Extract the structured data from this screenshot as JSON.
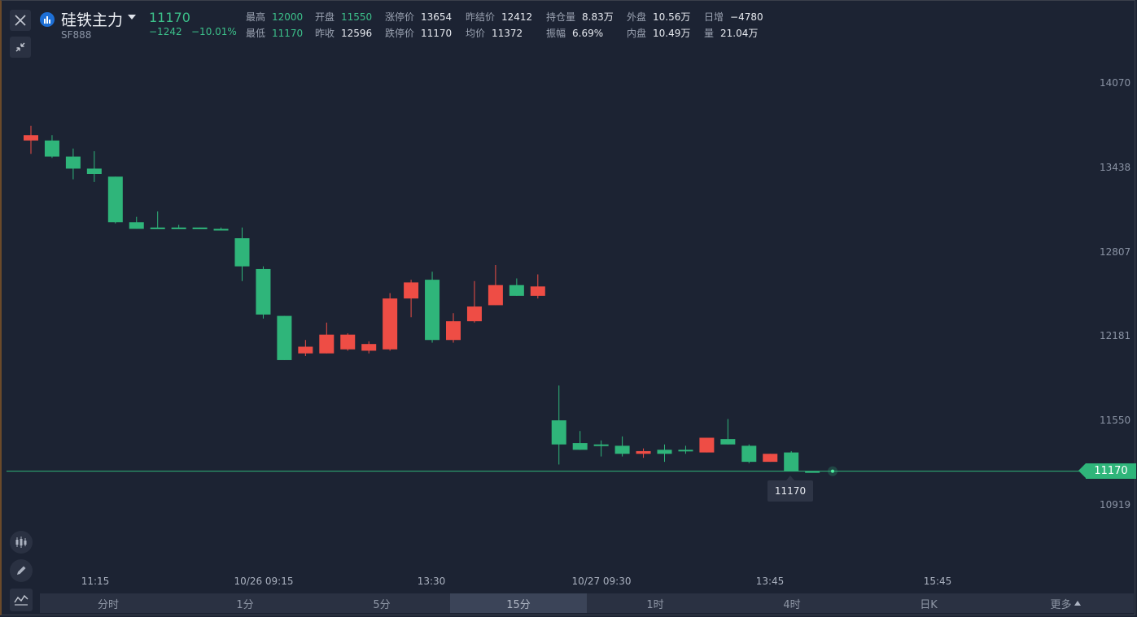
{
  "header": {
    "title": "硅铁主力",
    "code": "SF888",
    "last_price": "11170",
    "change": "−1242",
    "change_pct": "−10.01%",
    "stats_row1": [
      {
        "label": "最高",
        "value": "12000",
        "green": true
      },
      {
        "label": "开盘",
        "value": "11550",
        "green": true
      },
      {
        "label": "涨停价",
        "value": "13654",
        "green": false
      },
      {
        "label": "昨结价",
        "value": "12412",
        "green": false
      },
      {
        "label": "持仓量",
        "value": "8.83万",
        "green": false
      },
      {
        "label": "外盘",
        "value": "10.56万",
        "green": false
      },
      {
        "label": "日增",
        "value": "−4780",
        "green": false
      }
    ],
    "stats_row2": [
      {
        "label": "最低",
        "value": "11170",
        "green": true
      },
      {
        "label": "昨收",
        "value": "12596",
        "green": false
      },
      {
        "label": "跌停价",
        "value": "11170",
        "green": false
      },
      {
        "label": "均价",
        "value": "11372",
        "green": false
      },
      {
        "label": "振幅",
        "value": "6.69%",
        "green": false
      },
      {
        "label": "内盘",
        "value": "10.49万",
        "green": false
      },
      {
        "label": "量",
        "value": "21.04万",
        "green": false
      }
    ]
  },
  "chart_data": {
    "type": "candlestick",
    "y_ticks": [
      "14070",
      "13438",
      "12807",
      "12181",
      "11550",
      "10919"
    ],
    "x_ticks": [
      "11:15",
      "10/26 09:15",
      "13:30",
      "10/27 09:30",
      "13:45",
      "15:45"
    ],
    "last_price_tag": "11170",
    "crosshair_label": "11170",
    "colors": {
      "up": "#ee4d45",
      "down": "#2fb57a",
      "background": "#1c2333"
    },
    "candles": [
      {
        "open": 13640,
        "high": 13750,
        "low": 13540,
        "close": 13680
      },
      {
        "open": 13640,
        "high": 13680,
        "low": 13510,
        "close": 13520
      },
      {
        "open": 13520,
        "high": 13580,
        "low": 13350,
        "close": 13430
      },
      {
        "open": 13430,
        "high": 13560,
        "low": 13330,
        "close": 13390
      },
      {
        "open": 13370,
        "high": 13370,
        "low": 13020,
        "close": 13030
      },
      {
        "open": 13030,
        "high": 13070,
        "low": 12980,
        "close": 12980
      },
      {
        "open": 12990,
        "high": 13110,
        "low": 12980,
        "close": 12990
      },
      {
        "open": 12990,
        "high": 13010,
        "low": 12980,
        "close": 12990
      },
      {
        "open": 12990,
        "high": 12990,
        "low": 12980,
        "close": 12980
      },
      {
        "open": 12980,
        "high": 12990,
        "low": 12980,
        "close": 12980
      },
      {
        "open": 12910,
        "high": 12990,
        "low": 12590,
        "close": 12700
      },
      {
        "open": 12680,
        "high": 12700,
        "low": 12310,
        "close": 12340
      },
      {
        "open": 12330,
        "high": 12330,
        "low": 12000,
        "close": 12000
      },
      {
        "open": 12050,
        "high": 12150,
        "low": 12030,
        "close": 12100
      },
      {
        "open": 12050,
        "high": 12280,
        "low": 12050,
        "close": 12190
      },
      {
        "open": 12080,
        "high": 12200,
        "low": 12070,
        "close": 12190
      },
      {
        "open": 12070,
        "high": 12140,
        "low": 12050,
        "close": 12120
      },
      {
        "open": 12080,
        "high": 12500,
        "low": 12070,
        "close": 12460
      },
      {
        "open": 12460,
        "high": 12600,
        "low": 12320,
        "close": 12580
      },
      {
        "open": 12600,
        "high": 12660,
        "low": 12130,
        "close": 12150
      },
      {
        "open": 12150,
        "high": 12350,
        "low": 12130,
        "close": 12290
      },
      {
        "open": 12290,
        "high": 12590,
        "low": 12280,
        "close": 12400
      },
      {
        "open": 12410,
        "high": 12710,
        "low": 12410,
        "close": 12560
      },
      {
        "open": 12560,
        "high": 12610,
        "low": 12480,
        "close": 12480
      },
      {
        "open": 12480,
        "high": 12640,
        "low": 12460,
        "close": 12550
      },
      {
        "open": 11550,
        "high": 11810,
        "low": 11220,
        "close": 11370
      },
      {
        "open": 11380,
        "high": 11470,
        "low": 11330,
        "close": 11330
      },
      {
        "open": 11370,
        "high": 11400,
        "low": 11280,
        "close": 11360
      },
      {
        "open": 11360,
        "high": 11430,
        "low": 11280,
        "close": 11300
      },
      {
        "open": 11300,
        "high": 11340,
        "low": 11270,
        "close": 11320
      },
      {
        "open": 11330,
        "high": 11370,
        "low": 11240,
        "close": 11300
      },
      {
        "open": 11330,
        "high": 11360,
        "low": 11300,
        "close": 11330
      },
      {
        "open": 11310,
        "high": 11420,
        "low": 11310,
        "close": 11420
      },
      {
        "open": 11410,
        "high": 11560,
        "low": 11370,
        "close": 11370
      },
      {
        "open": 11360,
        "high": 11370,
        "low": 11230,
        "close": 11240
      },
      {
        "open": 11240,
        "high": 11300,
        "low": 11240,
        "close": 11300
      },
      {
        "open": 11310,
        "high": 11320,
        "low": 11170,
        "close": 11170
      },
      {
        "open": 11170,
        "high": 11170,
        "low": 11170,
        "close": 11170
      }
    ]
  },
  "tabs": {
    "items": [
      "分时",
      "1分",
      "5分",
      "15分",
      "1时",
      "4时",
      "日K",
      "更多"
    ],
    "active": "15分"
  }
}
